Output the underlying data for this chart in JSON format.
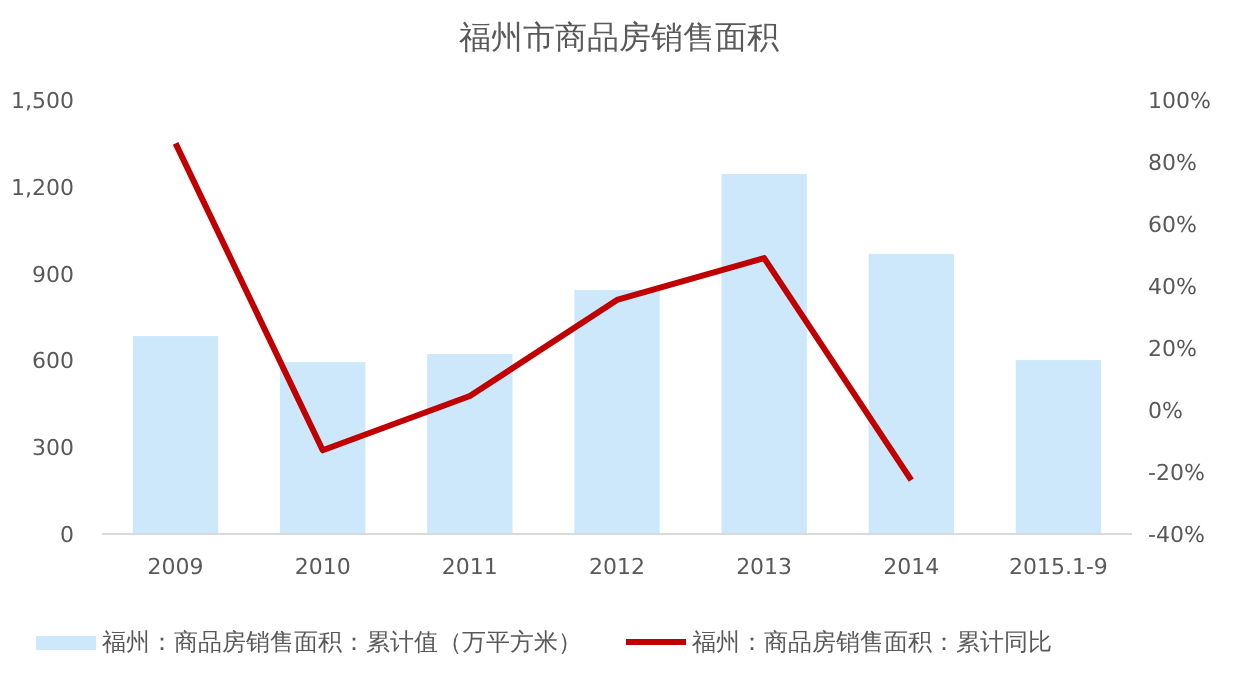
{
  "chart_data": {
    "type": "bar",
    "title": "福州市商品房销售面积",
    "categories": [
      "2009",
      "2010",
      "2011",
      "2012",
      "2013",
      "2014",
      "2015.1-9"
    ],
    "series": [
      {
        "name": "福州：商品房销售面积：累计值（万平方米）",
        "color": "#cce8fa",
        "values": [
          684,
          594,
          622,
          843,
          1244,
          968,
          601
        ]
      },
      {
        "name": "福州：商品房销售面积：累计同比",
        "type": "line",
        "axis": "y2",
        "color": "#c00000",
        "values": [
          86,
          -13,
          4.5,
          35.5,
          49,
          -22.6,
          null
        ]
      }
    ],
    "ylim": [
      0,
      1500
    ],
    "yticks": [
      0,
      {
        "value": 300,
        "label": "300"
      },
      {
        "value": 600,
        "label": "600"
      },
      {
        "value": 900,
        "label": "900"
      },
      {
        "value": 1200,
        "label": "1,200"
      },
      {
        "value": 1500,
        "label": "1,500"
      }
    ],
    "y2lim": [
      -40,
      100
    ],
    "y2ticks": [
      {
        "value": -40,
        "label": "-40%"
      },
      {
        "value": -20,
        "label": "-20%"
      },
      {
        "value": 0,
        "label": "0%"
      },
      {
        "value": 20,
        "label": "20%"
      },
      {
        "value": 40,
        "label": "40%"
      },
      {
        "value": 60,
        "label": "60%"
      },
      {
        "value": 80,
        "label": "80%"
      },
      {
        "value": 100,
        "label": "100%"
      }
    ],
    "legend": "bottom",
    "grid": false
  }
}
